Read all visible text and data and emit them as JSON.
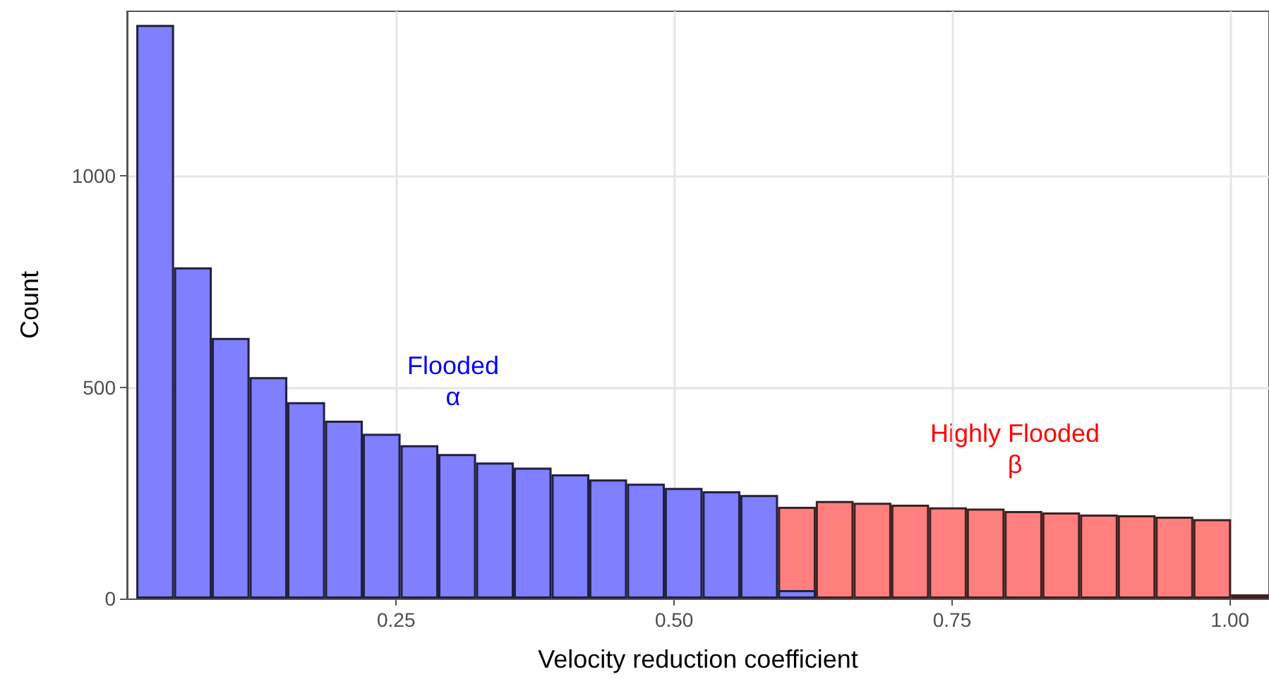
{
  "chart_data": {
    "type": "histogram",
    "xlabel": "Velocity reduction coefficient",
    "ylabel": "Count",
    "bins": [
      0.0163,
      0.0503,
      0.0842,
      0.1182,
      0.1521,
      0.1861,
      0.22,
      0.254,
      0.2879,
      0.3219,
      0.3558,
      0.3898,
      0.4237,
      0.4577,
      0.4916,
      0.5256,
      0.5595,
      0.5935,
      0.6274,
      0.6614,
      0.6953,
      0.7293,
      0.7632,
      0.7972,
      0.8311,
      0.8651,
      0.899,
      0.933,
      0.9669,
      1.0009,
      1.0348
    ],
    "series": [
      {
        "color": "#7f7fff",
        "values": [
          1358,
          784,
          617,
          524,
          465,
          421,
          390,
          363,
          342,
          322,
          310,
          294,
          282,
          272,
          262,
          254,
          245,
          20,
          null,
          null,
          null,
          null,
          null,
          null,
          null,
          null,
          null,
          null,
          null,
          null
        ]
      },
      {
        "color": "#ff7f7f",
        "values": [
          null,
          null,
          null,
          null,
          null,
          null,
          null,
          null,
          null,
          null,
          null,
          null,
          null,
          null,
          null,
          null,
          null,
          217,
          231,
          227,
          222,
          216,
          213,
          207,
          204,
          199,
          197,
          194,
          188,
          10
        ]
      }
    ],
    "xlim": [
      0.008,
      1.035
    ],
    "xticks": [
      {
        "value": 0.25,
        "label": "0.25"
      },
      {
        "value": 0.5,
        "label": "0.50"
      },
      {
        "value": 0.75,
        "label": "0.75"
      },
      {
        "value": 1.0,
        "label": "1.00"
      }
    ],
    "ylim": [
      0,
      1390
    ],
    "yticks": [
      0,
      500,
      1000
    ],
    "grid": true,
    "annotations": [
      "Flooded\nα",
      "Highly Flooded\nβ"
    ]
  }
}
